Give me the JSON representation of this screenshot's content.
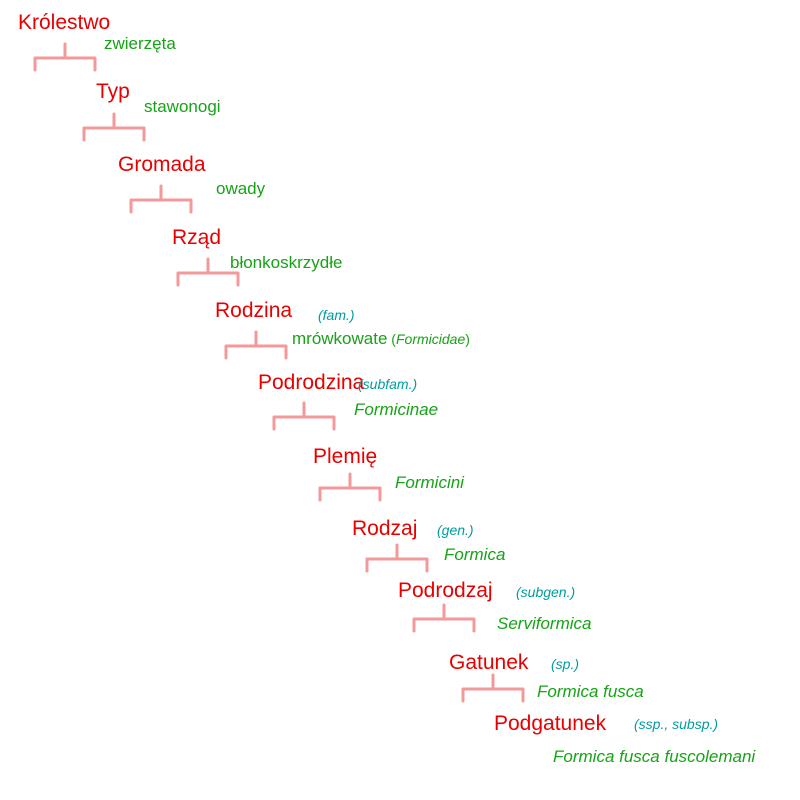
{
  "colors": {
    "rank": "#e80000",
    "abbreviation": "#009c9c",
    "taxon": "#16a316",
    "bracket": "#f29a9a"
  },
  "levels": [
    {
      "rank": "Królestwo",
      "abbr": "",
      "taxon": "zwierzęta",
      "taxon_italic": false
    },
    {
      "rank": "Typ",
      "abbr": "",
      "taxon": "stawonogi",
      "taxon_italic": false
    },
    {
      "rank": "Gromada",
      "abbr": "",
      "taxon": "owady",
      "taxon_italic": false
    },
    {
      "rank": "Rząd",
      "abbr": "",
      "taxon": "błonkoskrzydłe",
      "taxon_italic": false
    },
    {
      "rank": "Rodzina",
      "abbr": "(fam.)",
      "taxon": "mrówkowate",
      "taxon_latin": "Formicidae",
      "taxon_italic": false
    },
    {
      "rank": "Podrodzina",
      "abbr": "(subfam.)",
      "taxon": "Formicinae",
      "taxon_italic": true
    },
    {
      "rank": "Plemię",
      "abbr": "",
      "taxon": "Formicini",
      "taxon_italic": true
    },
    {
      "rank": "Rodzaj",
      "abbr": "(gen.)",
      "taxon": "Formica",
      "taxon_italic": true
    },
    {
      "rank": "Podrodzaj",
      "abbr": "(subgen.)",
      "taxon": "Serviformica",
      "taxon_italic": true
    },
    {
      "rank": "Gatunek",
      "abbr": "(sp.)",
      "taxon": "Formica fusca",
      "taxon_italic": true
    },
    {
      "rank": "Podgatunek",
      "abbr": "(ssp., subsp.)",
      "taxon": "Formica fusca fuscolemani",
      "taxon_italic": true
    }
  ]
}
